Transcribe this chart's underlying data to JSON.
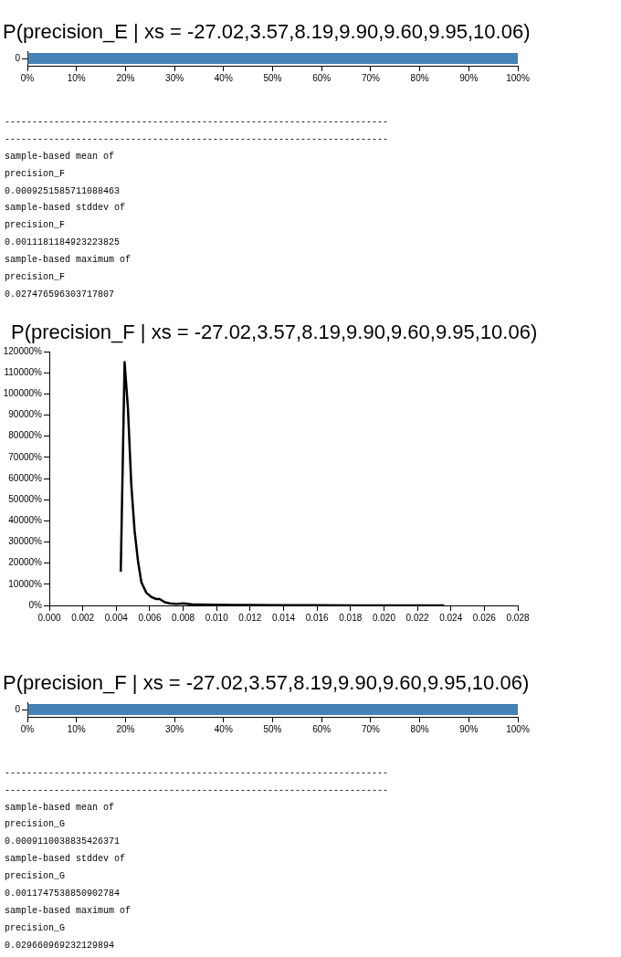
{
  "chart_data": [
    {
      "type": "bar",
      "title": "P(precision_E | xs = -27.02,3.57,8.19,9.90,9.60,9.95,10.06)",
      "orientation": "horizontal",
      "categories": [
        "0"
      ],
      "values": [
        100
      ],
      "color": "#4682b4",
      "xlim": [
        0,
        100
      ],
      "xticks": [
        {
          "value": 0,
          "label": "0%"
        },
        {
          "value": 10,
          "label": "10%"
        },
        {
          "value": 20,
          "label": "20%"
        },
        {
          "value": 30,
          "label": "30%"
        },
        {
          "value": 40,
          "label": "40%"
        },
        {
          "value": 50,
          "label": "50%"
        },
        {
          "value": 60,
          "label": "60%"
        },
        {
          "value": 70,
          "label": "70%"
        },
        {
          "value": 80,
          "label": "80%"
        },
        {
          "value": 90,
          "label": "90%"
        },
        {
          "value": 100,
          "label": "100%"
        }
      ]
    },
    {
      "type": "other",
      "annotations": [
        "----------------------------------------------------------------------",
        "----------------------------------------------------------------------",
        "sample-based mean of",
        "precision_F",
        "0.0009251585711088463",
        "sample-based stddev of",
        "precision_F",
        "0.0011181184923223825",
        "sample-based maximum of",
        "precision_F",
        "0.027476596303717807"
      ]
    },
    {
      "type": "line",
      "title": "P(precision_F | xs = -27.02,3.57,8.19,9.90,9.60,9.95,10.06)",
      "x": [
        0.00427,
        0.0045,
        0.0047,
        0.0049,
        0.0051,
        0.0053,
        0.0055,
        0.0058,
        0.0061,
        0.0064,
        0.0066,
        0.0069,
        0.0072,
        0.0076,
        0.008,
        0.0085,
        0.009,
        0.01,
        0.011,
        0.012,
        0.014,
        0.016,
        0.018,
        0.02,
        0.022,
        0.0236
      ],
      "values": [
        16000,
        115000,
        93000,
        57000,
        35000,
        21000,
        11000,
        6000,
        4000,
        3000,
        3000,
        1500,
        1000,
        700,
        1000,
        500,
        400,
        300,
        200,
        200,
        100,
        100,
        0,
        0,
        0,
        0
      ],
      "color": "#000000",
      "xlim": [
        0,
        0.028
      ],
      "ylim": [
        0,
        120000
      ],
      "xticks": [
        {
          "value": 0,
          "label": "0.000"
        },
        {
          "value": 0.002,
          "label": "0.002"
        },
        {
          "value": 0.004,
          "label": "0.004"
        },
        {
          "value": 0.006,
          "label": "0.006"
        },
        {
          "value": 0.008,
          "label": "0.008"
        },
        {
          "value": 0.01,
          "label": "0.010"
        },
        {
          "value": 0.012,
          "label": "0.012"
        },
        {
          "value": 0.014,
          "label": "0.014"
        },
        {
          "value": 0.016,
          "label": "0.016"
        },
        {
          "value": 0.018,
          "label": "0.018"
        },
        {
          "value": 0.02,
          "label": "0.020"
        },
        {
          "value": 0.022,
          "label": "0.022"
        },
        {
          "value": 0.024,
          "label": "0.024"
        },
        {
          "value": 0.026,
          "label": "0.026"
        },
        {
          "value": 0.028,
          "label": "0.028"
        }
      ],
      "yticks": [
        {
          "value": 0,
          "label": "0%"
        },
        {
          "value": 10000,
          "label": "10000%"
        },
        {
          "value": 20000,
          "label": "20000%"
        },
        {
          "value": 30000,
          "label": "30000%"
        },
        {
          "value": 40000,
          "label": "40000%"
        },
        {
          "value": 50000,
          "label": "50000%"
        },
        {
          "value": 60000,
          "label": "60000%"
        },
        {
          "value": 70000,
          "label": "70000%"
        },
        {
          "value": 80000,
          "label": "80000%"
        },
        {
          "value": 90000,
          "label": "90000%"
        },
        {
          "value": 100000,
          "label": "100000%"
        },
        {
          "value": 110000,
          "label": "110000%"
        },
        {
          "value": 120000,
          "label": "120000%"
        }
      ]
    },
    {
      "type": "bar",
      "title": "P(precision_F | xs = -27.02,3.57,8.19,9.90,9.60,9.95,10.06)",
      "orientation": "horizontal",
      "categories": [
        "0"
      ],
      "values": [
        100
      ],
      "color": "#4682b4",
      "xlim": [
        0,
        100
      ],
      "xticks": [
        {
          "value": 0,
          "label": "0%"
        },
        {
          "value": 10,
          "label": "10%"
        },
        {
          "value": 20,
          "label": "20%"
        },
        {
          "value": 30,
          "label": "30%"
        },
        {
          "value": 40,
          "label": "40%"
        },
        {
          "value": 50,
          "label": "50%"
        },
        {
          "value": 60,
          "label": "60%"
        },
        {
          "value": 70,
          "label": "70%"
        },
        {
          "value": 80,
          "label": "80%"
        },
        {
          "value": 90,
          "label": "90%"
        },
        {
          "value": 100,
          "label": "100%"
        }
      ]
    },
    {
      "type": "other",
      "annotations": [
        "----------------------------------------------------------------------",
        "----------------------------------------------------------------------",
        "sample-based mean of",
        "precision_G",
        "0.0009110038835426371",
        "sample-based stddev of",
        "precision_G",
        "0.0011747538850902784",
        "sample-based maximum of",
        "precision_G",
        "0.029660969232129894"
      ]
    }
  ]
}
